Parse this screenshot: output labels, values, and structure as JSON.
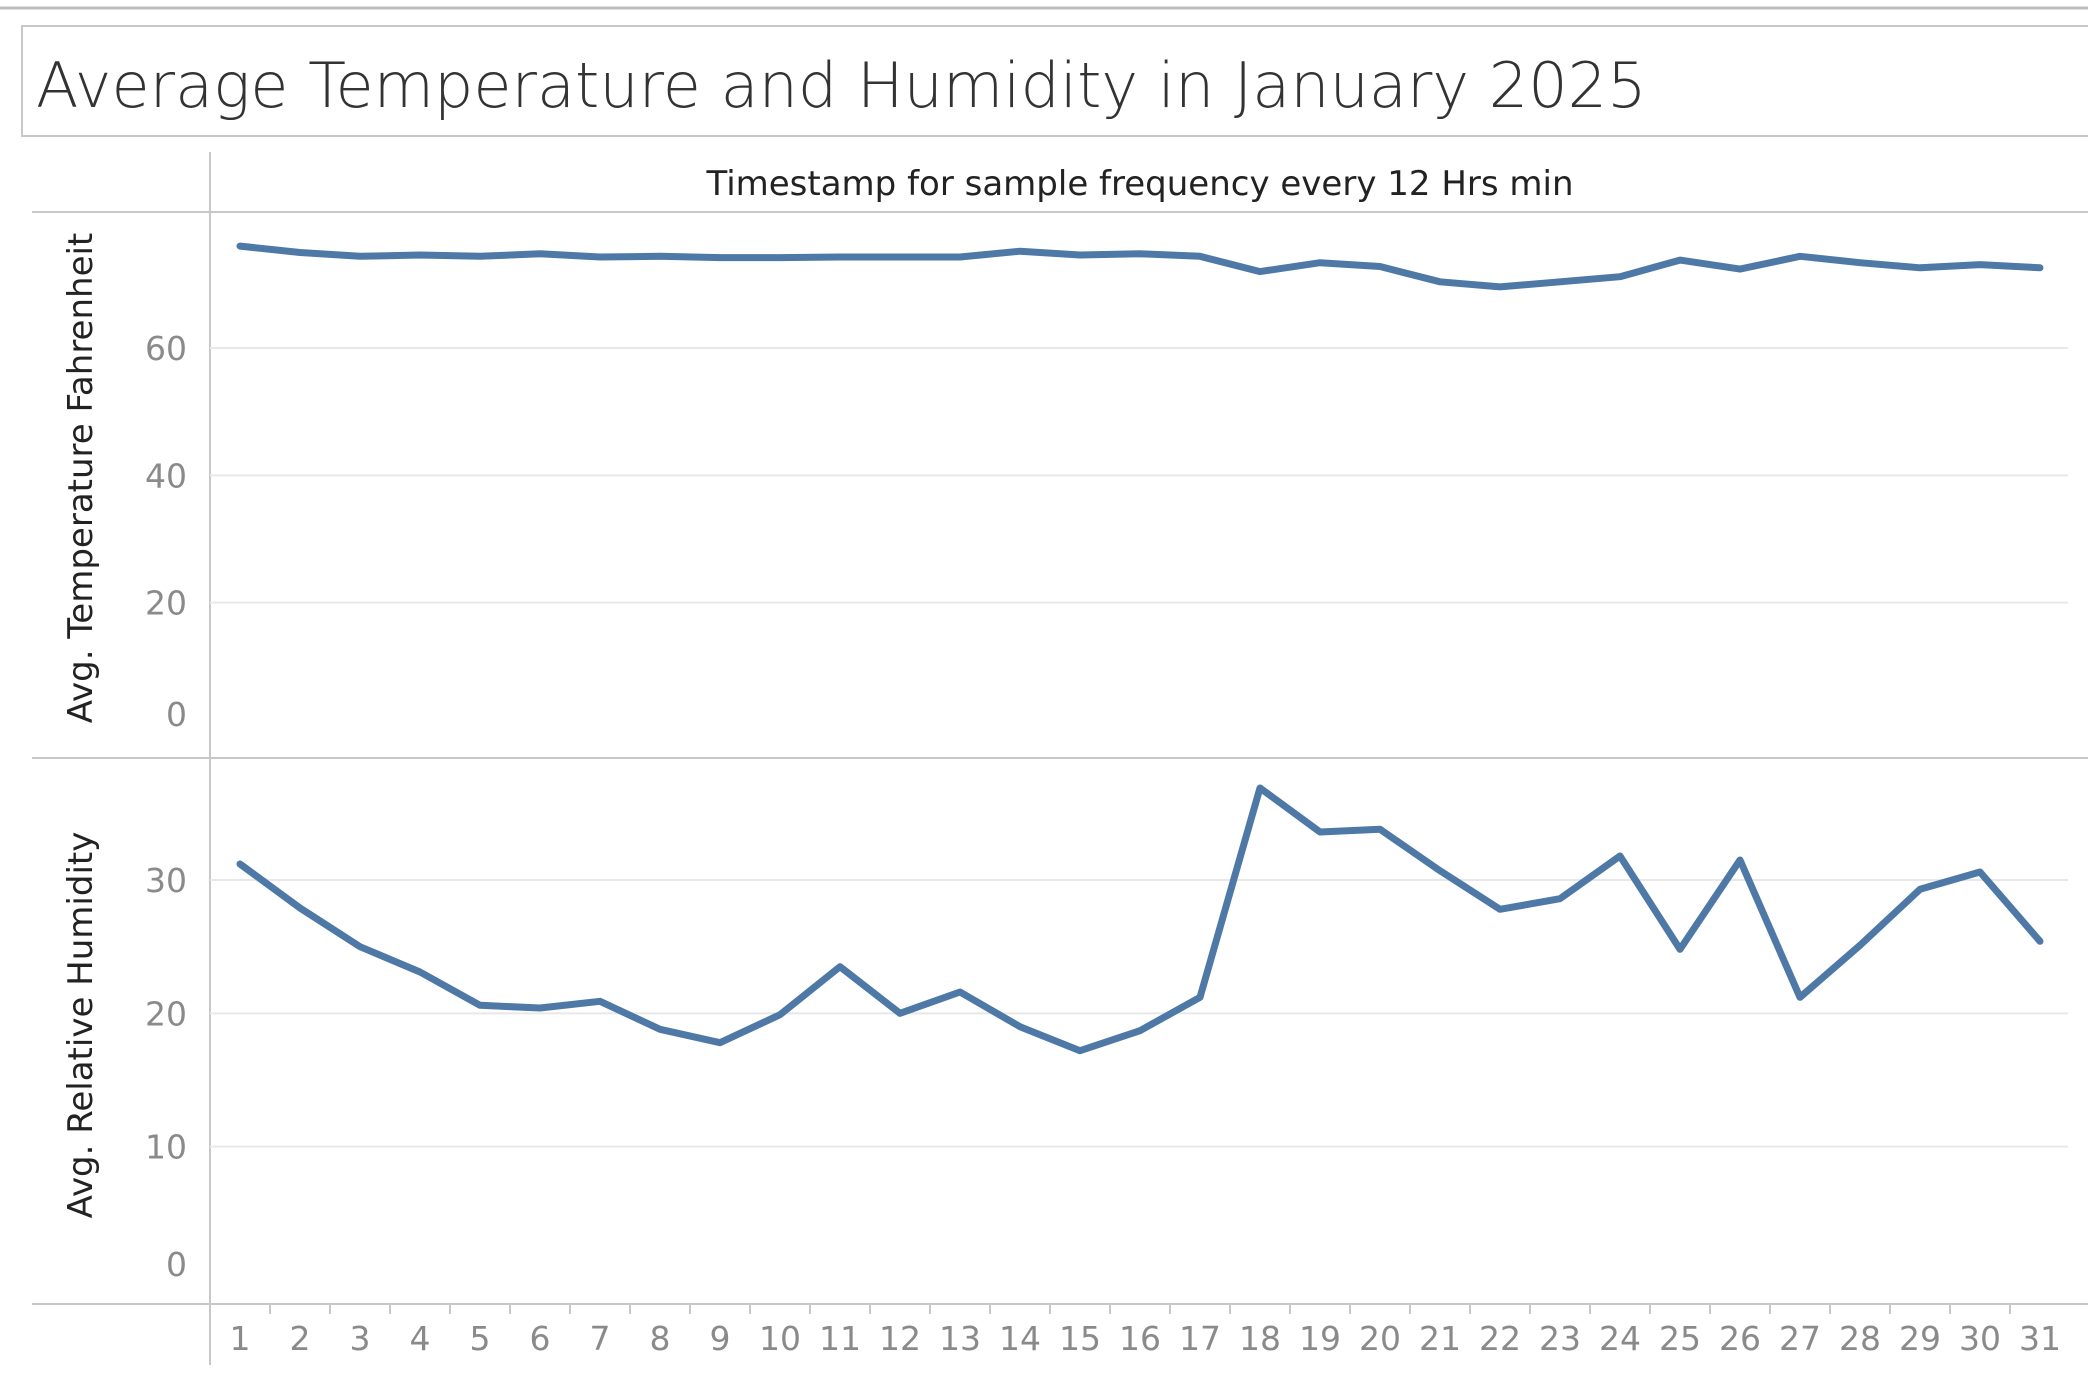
{
  "title": "Average Temperature and Humidity in January 2025",
  "colors": {
    "line": "#4e79a7",
    "grid": "#e8e8e8",
    "border": "#c8c8c8",
    "tick_text": "#8a8a8a",
    "label_text": "#222222"
  },
  "chart_data": {
    "type": "line",
    "title": "Average Temperature and Humidity in January 2025",
    "column_header": "Timestamp for sample frequency every 12 Hrs min",
    "categories": [
      "1",
      "2",
      "3",
      "4",
      "5",
      "6",
      "7",
      "8",
      "9",
      "10",
      "11",
      "12",
      "13",
      "14",
      "15",
      "16",
      "17",
      "18",
      "19",
      "20",
      "21",
      "22",
      "23",
      "24",
      "25",
      "26",
      "27",
      "28",
      "29",
      "30",
      "31"
    ],
    "panels": [
      {
        "ylabel": "Avg. Temperature Fahrenheit",
        "yticks": [
          0,
          20,
          40,
          60
        ],
        "ylim": [
          0,
          80
        ],
        "series": [
          {
            "values": [
              76.0,
              75.0,
              74.4,
              74.6,
              74.4,
              74.8,
              74.3,
              74.4,
              74.2,
              74.2,
              74.3,
              74.3,
              74.3,
              75.2,
              74.6,
              74.8,
              74.4,
              72.0,
              73.4,
              72.8,
              70.4,
              69.6,
              70.4,
              71.2,
              73.8,
              72.4,
              74.4,
              73.4,
              72.6,
              73.1,
              72.6
            ]
          }
        ]
      },
      {
        "ylabel": "Avg. Relative Humidity",
        "yticks": [
          0,
          10,
          20,
          30
        ],
        "ylim": [
          0,
          38
        ],
        "series": [
          {
            "values": [
              31.2,
              27.9,
              25.0,
              23.1,
              20.6,
              20.4,
              20.9,
              18.8,
              17.8,
              19.9,
              23.5,
              20.0,
              21.6,
              19.0,
              17.2,
              18.7,
              21.2,
              36.9,
              33.6,
              33.8,
              30.7,
              27.8,
              28.6,
              31.8,
              24.8,
              31.5,
              21.2,
              25.1,
              29.3,
              30.6,
              25.4
            ]
          }
        ]
      }
    ]
  }
}
